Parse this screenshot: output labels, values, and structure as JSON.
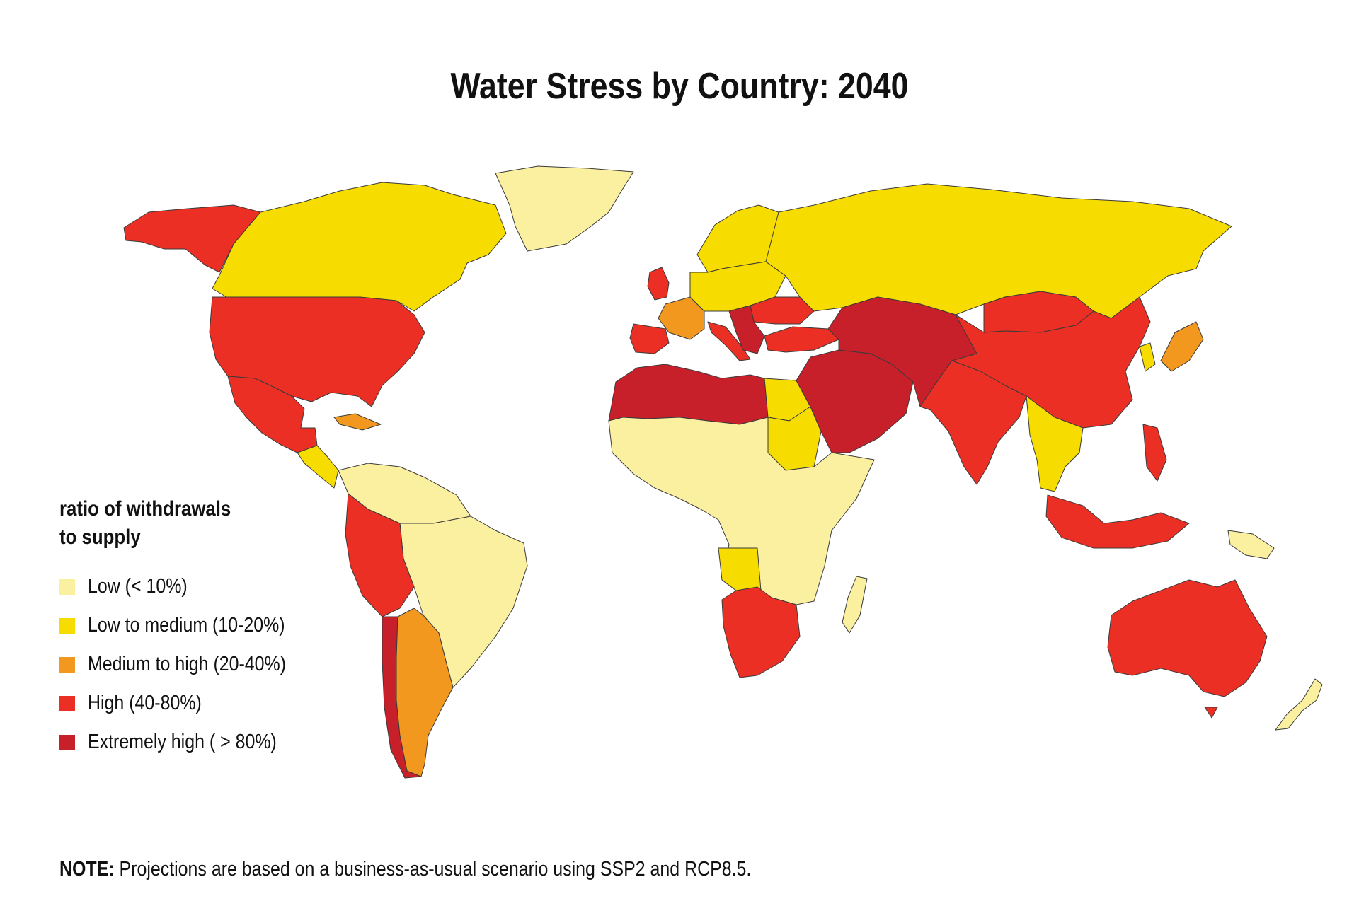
{
  "title": "Water Stress by Country: 2040",
  "legend": {
    "title_line1": "ratio of withdrawals",
    "title_line2": "to supply",
    "items": [
      {
        "label": "Low (< 10%)",
        "color": "#fbf0a0"
      },
      {
        "label": "Low to medium (10-20%)",
        "color": "#f7dc00"
      },
      {
        "label": "Medium to high  (20-40%)",
        "color": "#f3981e"
      },
      {
        "label": "High (40-80%)",
        "color": "#ec2f24"
      },
      {
        "label": "Extremely high ( > 80%)",
        "color": "#c7202b"
      }
    ]
  },
  "note": {
    "prefix": "NOTE:",
    "text": " Projections are based on a business-as-usual scenario using SSP2 and RCP8.5."
  },
  "regions": [
    {
      "name": "Alaska",
      "category": "High (40-80%)"
    },
    {
      "name": "Canada",
      "category": "Low to medium (10-20%)"
    },
    {
      "name": "Greenland",
      "category": "Low (< 10%)"
    },
    {
      "name": "United States",
      "category": "High (40-80%)"
    },
    {
      "name": "Mexico",
      "category": "High (40-80%)"
    },
    {
      "name": "Central America",
      "category": "Low to medium (10-20%)"
    },
    {
      "name": "Northern South America",
      "category": "Low (< 10%)"
    },
    {
      "name": "Brazil",
      "category": "Low (< 10%)"
    },
    {
      "name": "Peru",
      "category": "High (40-80%)"
    },
    {
      "name": "Chile",
      "category": "Extremely high ( > 80%)"
    },
    {
      "name": "Argentina",
      "category": "Medium to high  (20-40%)"
    },
    {
      "name": "Scandinavia",
      "category": "Low to medium (10-20%)"
    },
    {
      "name": "United Kingdom",
      "category": "High (40-80%)"
    },
    {
      "name": "France",
      "category": "Medium to high  (20-40%)"
    },
    {
      "name": "Iberia",
      "category": "High (40-80%)"
    },
    {
      "name": "Central Europe",
      "category": "Low to medium (10-20%)"
    },
    {
      "name": "Italy",
      "category": "High (40-80%)"
    },
    {
      "name": "Ukraine",
      "category": "High (40-80%)"
    },
    {
      "name": "Russia",
      "category": "Low to medium (10-20%)"
    },
    {
      "name": "North Africa",
      "category": "Extremely high ( > 80%)"
    },
    {
      "name": "Egypt",
      "category": "Low to medium (10-20%)"
    },
    {
      "name": "Sudan",
      "category": "Low to medium (10-20%)"
    },
    {
      "name": "Sub-Saharan Africa",
      "category": "Low (< 10%)"
    },
    {
      "name": "Angola",
      "category": "Low to medium (10-20%)"
    },
    {
      "name": "Southern Africa",
      "category": "High (40-80%)"
    },
    {
      "name": "Madagascar",
      "category": "Low (< 10%)"
    },
    {
      "name": "Turkey",
      "category": "High (40-80%)"
    },
    {
      "name": "Middle East",
      "category": "Extremely high ( > 80%)"
    },
    {
      "name": "Central Asia",
      "category": "Extremely high ( > 80%)"
    },
    {
      "name": "Mongolia",
      "category": "High (40-80%)"
    },
    {
      "name": "China",
      "category": "High (40-80%)"
    },
    {
      "name": "India",
      "category": "High (40-80%)"
    },
    {
      "name": "Southeast Asia",
      "category": "Low to medium (10-20%)"
    },
    {
      "name": "Japan",
      "category": "Medium to high  (20-40%)"
    },
    {
      "name": "Indonesia",
      "category": "High (40-80%)"
    },
    {
      "name": "Philippines",
      "category": "High (40-80%)"
    },
    {
      "name": "Papua New Guinea",
      "category": "Low (< 10%)"
    },
    {
      "name": "Australia",
      "category": "High (40-80%)"
    },
    {
      "name": "New Zealand",
      "category": "Low (< 10%)"
    }
  ]
}
